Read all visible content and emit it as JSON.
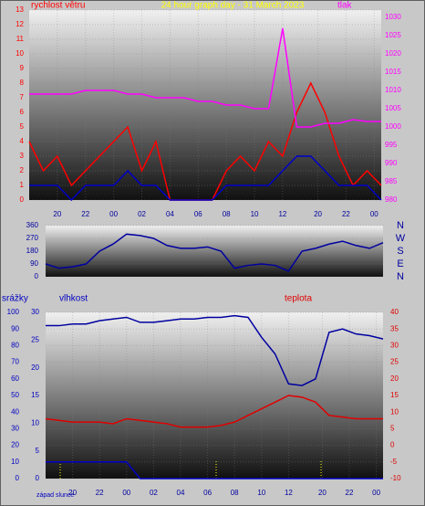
{
  "chart_data": [
    {
      "type": "line",
      "title": "24 hour graph day - 31 March 2023",
      "ylabel": "rychlost větru",
      "y2label": "tlak",
      "xlim": [
        0,
        25
      ],
      "xticks": [
        {
          "value": 2,
          "label": "20"
        },
        {
          "value": 4,
          "label": "22"
        },
        {
          "value": 6,
          "label": "00"
        },
        {
          "value": 8,
          "label": "02"
        },
        {
          "value": 10,
          "label": "04"
        },
        {
          "value": 12,
          "label": "06"
        },
        {
          "value": 14,
          "label": "08"
        },
        {
          "value": 16,
          "label": "10"
        },
        {
          "value": 18,
          "label": "12"
        },
        {
          "value": 20.5,
          "label": "20"
        },
        {
          "value": 22.5,
          "label": "22"
        },
        {
          "value": 24.5,
          "label": "00"
        }
      ],
      "ylim": [
        0,
        13
      ],
      "yticks": [
        0,
        1,
        2,
        3,
        4,
        5,
        6,
        7,
        8,
        9,
        10,
        11,
        12,
        13
      ],
      "y2lim": [
        980,
        1032
      ],
      "y2ticks": [
        980,
        985,
        990,
        995,
        1000,
        1005,
        1010,
        1015,
        1020,
        1025,
        1030
      ],
      "grid": true,
      "x": [
        0,
        1,
        2,
        3,
        4,
        5,
        6,
        7,
        8,
        9,
        10,
        11,
        12,
        13,
        14,
        15,
        16,
        17,
        18,
        19,
        20,
        21,
        22,
        23,
        24,
        25
      ],
      "series": [
        {
          "color": "#ff0000",
          "values": [
            4,
            2,
            3,
            1,
            2,
            3,
            4,
            5,
            2,
            4,
            0,
            0,
            0,
            0,
            2,
            3,
            2,
            4,
            3,
            6,
            8,
            6,
            3,
            1,
            2,
            1
          ]
        },
        {
          "color": "#0000c8",
          "values": [
            1,
            1,
            1,
            0,
            1,
            1,
            1,
            2,
            1,
            1,
            0,
            0,
            0,
            0,
            1,
            1,
            1,
            1,
            2,
            3,
            3,
            2,
            1,
            1,
            1,
            0
          ]
        },
        {
          "color": "#ff00ff",
          "axis": "y2",
          "values": [
            1009,
            1009,
            1009,
            1009,
            1010,
            1010,
            1010,
            1009,
            1009,
            1008,
            1008,
            1008,
            1007,
            1007,
            1006,
            1006,
            1005,
            1005,
            1027,
            1000,
            1000,
            1001,
            1001,
            1002,
            1001.5,
            1001.5
          ]
        }
      ]
    },
    {
      "type": "line",
      "xlim": [
        0,
        25
      ],
      "ylim": [
        0,
        360
      ],
      "yticks": [
        0,
        90,
        180,
        270,
        360
      ],
      "y2lim": [
        0,
        360
      ],
      "y2ticks": [
        {
          "value": 360,
          "label": "N"
        },
        {
          "value": 270,
          "label": "W"
        },
        {
          "value": 180,
          "label": "S"
        },
        {
          "value": 90,
          "label": "E"
        },
        {
          "value": 0,
          "label": "N"
        }
      ],
      "grid": true,
      "x": [
        0,
        1,
        2,
        3,
        4,
        5,
        6,
        7,
        8,
        9,
        10,
        11,
        12,
        13,
        14,
        15,
        16,
        17,
        18,
        19,
        20,
        21,
        22,
        23,
        24,
        25
      ],
      "series": [
        {
          "color": "#0000a0",
          "values": [
            90,
            60,
            70,
            90,
            180,
            230,
            300,
            290,
            270,
            220,
            200,
            200,
            210,
            180,
            60,
            80,
            90,
            80,
            40,
            180,
            200,
            230,
            250,
            220,
            200,
            240
          ]
        }
      ]
    },
    {
      "type": "line",
      "ylabel": "srážky",
      "y3label": "vlhkost",
      "y2label": "teplota",
      "note": "západ slunce",
      "xlim": [
        0,
        25
      ],
      "xticks": [
        {
          "value": 2,
          "label": "20"
        },
        {
          "value": 4,
          "label": "22"
        },
        {
          "value": 6,
          "label": "00"
        },
        {
          "value": 8,
          "label": "02"
        },
        {
          "value": 10,
          "label": "04"
        },
        {
          "value": 12,
          "label": "06"
        },
        {
          "value": 14,
          "label": "08"
        },
        {
          "value": 16,
          "label": "10"
        },
        {
          "value": 18,
          "label": "12"
        },
        {
          "value": 20.5,
          "label": "20"
        },
        {
          "value": 22.5,
          "label": "22"
        },
        {
          "value": 24.5,
          "label": "00"
        }
      ],
      "ylim": [
        0,
        100
      ],
      "yticks": [
        0,
        10,
        20,
        30,
        40,
        50,
        60,
        70,
        80,
        90,
        100
      ],
      "y3lim": [
        0,
        30
      ],
      "y3ticks": [
        0,
        5,
        10,
        15,
        20,
        25,
        30
      ],
      "y2lim": [
        -10,
        40
      ],
      "y2ticks": [
        -10,
        -5,
        0,
        5,
        10,
        15,
        20,
        25,
        30,
        35,
        40
      ],
      "grid": true,
      "x": [
        0,
        1,
        2,
        3,
        4,
        5,
        6,
        7,
        8,
        9,
        10,
        11,
        12,
        13,
        14,
        15,
        16,
        17,
        18,
        19,
        20,
        21,
        22,
        23,
        24,
        25
      ],
      "series": [
        {
          "color": "#0000a0",
          "values": [
            92,
            92,
            93,
            93,
            95,
            96,
            97,
            94,
            94,
            95,
            96,
            96,
            97,
            97,
            98,
            97,
            85,
            75,
            57,
            56,
            60,
            88,
            90,
            87,
            86,
            84
          ]
        },
        {
          "color": "#e00000",
          "axis": "y2",
          "values": [
            8,
            7.5,
            7,
            7,
            7,
            6.5,
            8,
            7.5,
            7,
            6.5,
            5.5,
            5.5,
            5.5,
            6,
            7,
            9,
            11,
            13,
            15,
            14.5,
            13,
            9,
            8.5,
            8,
            8,
            8
          ]
        },
        {
          "color": "#0000c8",
          "values": [
            10,
            10,
            10,
            10,
            10,
            10,
            10,
            0,
            0,
            0,
            0,
            0,
            0,
            0,
            0,
            0,
            0,
            0,
            0,
            0,
            0,
            0,
            0,
            0,
            0,
            0
          ]
        }
      ]
    }
  ]
}
